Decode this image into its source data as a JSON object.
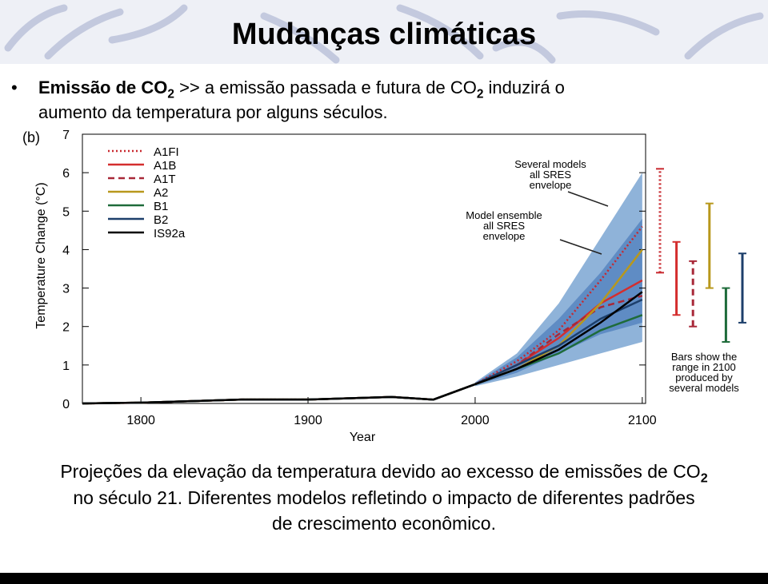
{
  "slide": {
    "title": "Mudanças climáticas",
    "bullet": [
      "Emissão de CO",
      "2",
      " >> a emissão passada e futura de CO",
      "2",
      " induzirá o",
      "aumento da temperatura por alguns séculos."
    ],
    "caption": [
      "Projeções da elevação da temperatura devido ao excesso de emissões de CO",
      "2",
      "no século 21. Diferentes modelos refletindo o impacto de diferentes padrões",
      "de crescimento econômico."
    ]
  },
  "chart_data": {
    "type": "line",
    "panel_label": "(b)",
    "ylabel": "Temperature Change (°C)",
    "xlabel": "Year",
    "xlim": [
      1765,
      2102
    ],
    "ylim": [
      0,
      7
    ],
    "xticks": [
      1800,
      1900,
      2000,
      2100
    ],
    "yticks": [
      0,
      1,
      2,
      3,
      4,
      5,
      6,
      7
    ],
    "x": [
      1765,
      1800,
      1860,
      1900,
      1950,
      1975,
      2000,
      2025,
      2050,
      2075,
      2100
    ],
    "series": [
      {
        "name": "A1FI",
        "color": "#c8282e",
        "dash": "dotted",
        "values": [
          0,
          0.02,
          0.1,
          0.1,
          0.17,
          0.1,
          0.5,
          1.1,
          1.9,
          3.2,
          4.6
        ],
        "range": [
          3.4,
          6.1
        ]
      },
      {
        "name": "A1B",
        "color": "#d42e2e",
        "dash": "solid",
        "values": [
          0,
          0.02,
          0.1,
          0.1,
          0.17,
          0.1,
          0.5,
          1.0,
          1.7,
          2.6,
          3.2
        ],
        "range": [
          2.3,
          4.2
        ]
      },
      {
        "name": "A1T",
        "color": "#a82838",
        "dash": "dashed",
        "values": [
          0,
          0.02,
          0.1,
          0.1,
          0.17,
          0.1,
          0.5,
          1.0,
          1.8,
          2.5,
          2.8
        ],
        "range": [
          2.0,
          3.7
        ]
      },
      {
        "name": "A2",
        "color": "#b8981c",
        "dash": "solid",
        "values": [
          0,
          0.02,
          0.1,
          0.1,
          0.17,
          0.1,
          0.5,
          0.9,
          1.5,
          2.6,
          4.0
        ],
        "range": [
          3.0,
          5.2
        ]
      },
      {
        "name": "B1",
        "color": "#1e6b3a",
        "dash": "solid",
        "values": [
          0,
          0.02,
          0.1,
          0.1,
          0.17,
          0.1,
          0.5,
          0.9,
          1.3,
          1.9,
          2.3
        ],
        "range": [
          1.6,
          3.0
        ]
      },
      {
        "name": "B2",
        "color": "#1d3f6b",
        "dash": "solid",
        "values": [
          0,
          0.02,
          0.1,
          0.1,
          0.17,
          0.1,
          0.5,
          1.0,
          1.5,
          2.2,
          2.7
        ],
        "range": [
          2.1,
          3.9
        ]
      },
      {
        "name": "IS92a",
        "color": "#000000",
        "dash": "solid",
        "values": [
          0,
          0.02,
          0.1,
          0.1,
          0.17,
          0.1,
          0.5,
          0.9,
          1.4,
          2.1,
          2.9
        ]
      }
    ],
    "bands": [
      {
        "color": "#8fb3d9",
        "x": [
          2000,
          2025,
          2050,
          2075,
          2100
        ],
        "lower": [
          0.45,
          0.7,
          1.0,
          1.3,
          1.6
        ],
        "upper": [
          0.55,
          1.3,
          2.6,
          4.3,
          6.0
        ]
      },
      {
        "color": "#5f8cc4",
        "x": [
          2000,
          2025,
          2050,
          2075,
          2100
        ],
        "lower": [
          0.47,
          0.8,
          1.3,
          1.8,
          2.1
        ],
        "upper": [
          0.53,
          1.2,
          2.2,
          3.4,
          4.8
        ]
      }
    ],
    "annotations": [
      "Several models",
      "all SRES",
      "envelope",
      "Model ensemble",
      "all SRES",
      "envelope",
      "Bars show the",
      "range in 2100",
      "produced by",
      "several models"
    ]
  }
}
